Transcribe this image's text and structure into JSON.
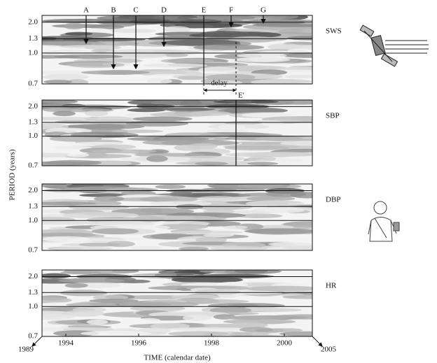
{
  "figure": {
    "ylabel": "PERIOD (years)",
    "xlabel": "TIME (calendar date)",
    "yticks": [
      0.7,
      {
        "value": 1,
        "label": "1.0"
      },
      1.3,
      {
        "value": 2,
        "label": "2.0"
      }
    ],
    "xticks": [
      1994,
      1996,
      1998,
      2000
    ],
    "x_ends": [
      "1989",
      "2005"
    ],
    "panels": [
      {
        "label": "SWS"
      },
      {
        "label": "SBP"
      },
      {
        "label": "DBP"
      },
      {
        "label": "HR"
      }
    ],
    "events": [
      "A",
      "B",
      "C",
      "D",
      "E",
      "F",
      "G"
    ],
    "delay": "delay",
    "delayed_event": "E'"
  }
}
